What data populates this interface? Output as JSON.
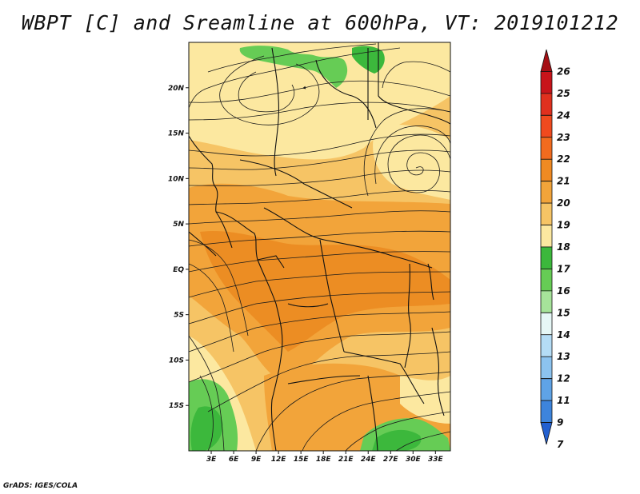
{
  "title": "WBPT [C] and Sreamline at 600hPa, VT: 2019101212",
  "footer": "GrADS: IGES/COLA",
  "colors": {
    "green_dark": "#3cb83c",
    "green_mid": "#66cc55",
    "yellow_pale": "#fce8a0",
    "orange_light": "#f6c465",
    "orange": "#f2a43a",
    "orange_dark": "#ec8d23",
    "coast_line": "#111111",
    "streamline": "#1a1a1a"
  },
  "chart_data": {
    "type": "heatmap",
    "description_field": "wet-bulb potential temperature with streamlines",
    "xlim": [
      0,
      35
    ],
    "ylim": [
      -20,
      25
    ],
    "x_ticks": [
      {
        "value": 3,
        "label": "3E"
      },
      {
        "value": 6,
        "label": "6E"
      },
      {
        "value": 9,
        "label": "9E"
      },
      {
        "value": 12,
        "label": "12E"
      },
      {
        "value": 15,
        "label": "15E"
      },
      {
        "value": 18,
        "label": "18E"
      },
      {
        "value": 21,
        "label": "21E"
      },
      {
        "value": 24,
        "label": "24E"
      },
      {
        "value": 27,
        "label": "27E"
      },
      {
        "value": 30,
        "label": "30E"
      },
      {
        "value": 33,
        "label": "33E"
      }
    ],
    "y_ticks": [
      {
        "value": 20,
        "label": "20N"
      },
      {
        "value": 15,
        "label": "15N"
      },
      {
        "value": 10,
        "label": "10N"
      },
      {
        "value": 5,
        "label": "5N"
      },
      {
        "value": 0,
        "label": "EQ"
      },
      {
        "value": -5,
        "label": "5S"
      },
      {
        "value": -10,
        "label": "10S"
      },
      {
        "value": -15,
        "label": "15S"
      }
    ],
    "colorbar": {
      "labels": [
        "26",
        "25",
        "24",
        "23",
        "22",
        "21",
        "20",
        "19",
        "18",
        "17",
        "16",
        "15",
        "14",
        "13",
        "12",
        "11",
        "9",
        "7"
      ],
      "colors": [
        "#a50f15",
        "#c8141a",
        "#e0301e",
        "#f04a1e",
        "#f26b1e",
        "#f08a22",
        "#f2a43a",
        "#f6c465",
        "#fce8a0",
        "#3cb83c",
        "#66cc55",
        "#a6e39a",
        "#e6f7f6",
        "#b4dcf5",
        "#8cc3ef",
        "#5fa3e6",
        "#3d84dc",
        "#2360d0"
      ]
    }
  }
}
